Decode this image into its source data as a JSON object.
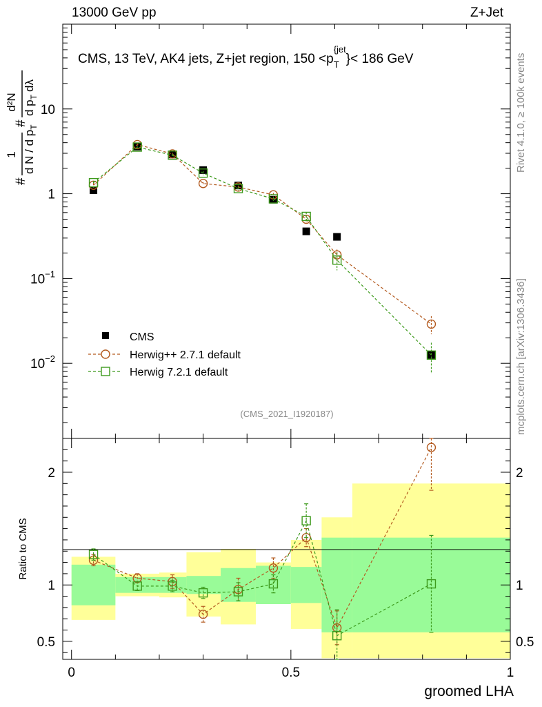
{
  "header": {
    "energy_label": "13000 GeV pp",
    "process_label": "Z+Jet"
  },
  "side": {
    "rivet_label": "Rivet 4.1.0, ≥ 100k events",
    "mcplots_label": "mcplots.cern.ch [arXiv:1306.3436]"
  },
  "chart_data": {
    "type": "line",
    "title": "CMS, 13 TeV, AK4 jets, Z+jet region, 150 <p_T^{jet}< 186 GeV",
    "title_parts": {
      "main": "CMS, 13 TeV, AK4 jets, Z+jet region, 150 <p",
      "sub": "T",
      "sup": "{jet",
      "tail": "}< 186 GeV"
    },
    "analysis_tag": "(CMS_2021_I1920187)",
    "xlabel": "groomed LHA",
    "ylabel": "1/dN/dp_T # d^2N/dp_T dλ",
    "ylabel_parts": {
      "num": "1",
      "den": "d N / d p",
      "sub": "T",
      "hash": "#",
      "num2": "d²N",
      "den2": "d p",
      "sub2": "T",
      "den2b": "dλ"
    },
    "ratio_ylabel": "Ratio to CMS",
    "xlim": [
      -0.02,
      1.0
    ],
    "ylim": [
      0.0013,
      100
    ],
    "ratio_ylim": [
      0.34,
      2.3
    ],
    "x_ticks": [
      "0",
      "0.5",
      "1"
    ],
    "x_tick_values": [
      0,
      0.5,
      1
    ],
    "y_ticks": [
      {
        "value": 0.01,
        "base": "10",
        "exp": "−2"
      },
      {
        "value": 0.1,
        "base": "10",
        "exp": "−1"
      },
      {
        "value": 1,
        "label": "1"
      },
      {
        "value": 10,
        "label": "10"
      }
    ],
    "ratio_ticks": [
      {
        "value": 0.5,
        "label": "0.5"
      },
      {
        "value": 1,
        "label": "1"
      },
      {
        "value": 2,
        "label": "2"
      }
    ],
    "bins": [
      [
        0.0,
        0.1
      ],
      [
        0.1,
        0.2
      ],
      [
        0.2,
        0.262
      ],
      [
        0.262,
        0.34
      ],
      [
        0.34,
        0.42
      ],
      [
        0.42,
        0.5
      ],
      [
        0.5,
        0.57
      ],
      [
        0.57,
        0.64
      ],
      [
        0.64,
        1.0
      ]
    ],
    "x": [
      0.05,
      0.15,
      0.23,
      0.3,
      0.38,
      0.46,
      0.535,
      0.605,
      0.82
    ],
    "series": [
      {
        "name": "CMS",
        "color": "#000000",
        "marker": "filled-square",
        "values": [
          1.1,
          3.6,
          2.9,
          1.9,
          1.25,
          0.85,
          0.36,
          0.31,
          0.0125
        ],
        "stat_band": [
          0.18,
          0.07,
          0.07,
          0.08,
          0.15,
          0.17,
          0.16,
          0.42,
          0.42
        ],
        "total_band_up": [
          0.25,
          0.1,
          0.11,
          0.29,
          0.32,
          0.2,
          0.4,
          0.6,
          0.9
        ],
        "total_band_down": [
          0.31,
          0.1,
          0.11,
          0.28,
          0.35,
          0.17,
          0.39,
          0.65,
          0.65
        ]
      },
      {
        "name": "Herwig++ 2.7.1 default",
        "color": "#b35a1f",
        "marker": "open-circle",
        "values": [
          1.26,
          3.8,
          2.95,
          1.32,
          1.2,
          0.97,
          0.5,
          0.19,
          0.029
        ],
        "errors": [
          0.08,
          0.12,
          0.1,
          0.05,
          0.05,
          0.05,
          0.05,
          0.03,
          0.007
        ],
        "ratio": [
          1.22,
          1.06,
          1.03,
          0.74,
          0.96,
          1.15,
          1.42,
          0.62,
          2.22
        ],
        "ratio_err": [
          0.05,
          0.04,
          0.06,
          0.07,
          0.1,
          0.09,
          0.08,
          0.15,
          0.38
        ]
      },
      {
        "name": "Herwig 7.2.1 default",
        "color": "#3d9a1c",
        "marker": "open-square",
        "values": [
          1.35,
          3.55,
          2.85,
          1.75,
          1.15,
          0.87,
          0.54,
          0.165,
          0.0125
        ],
        "errors": [
          0.06,
          0.1,
          0.1,
          0.1,
          0.06,
          0.05,
          0.07,
          0.04,
          0.005
        ],
        "ratio": [
          1.27,
          0.99,
          0.99,
          0.93,
          0.94,
          1.01,
          1.57,
          0.55,
          1.01
        ],
        "ratio_err": [
          0.05,
          0.04,
          0.05,
          0.05,
          0.08,
          0.08,
          0.15,
          0.23,
          0.43
        ]
      }
    ],
    "legend": [
      {
        "label": "CMS"
      },
      {
        "label": "Herwig++ 2.7.1 default"
      },
      {
        "label": "Herwig 7.2.1 default"
      }
    ],
    "band_colors": {
      "stat": "#99fb98",
      "total": "#ffff99"
    }
  }
}
